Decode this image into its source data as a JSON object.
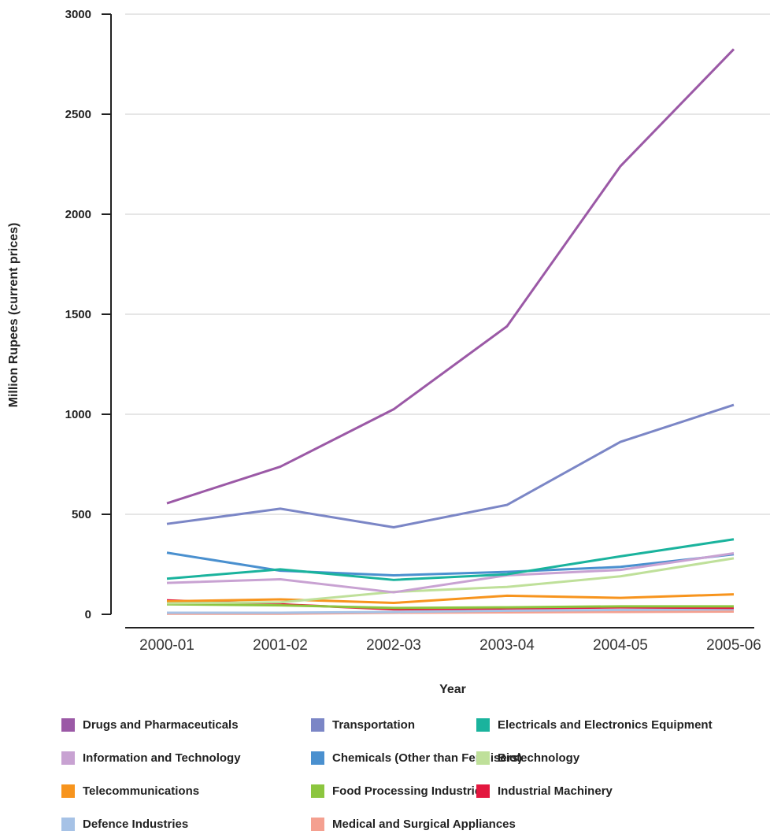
{
  "chart_data": {
    "type": "line",
    "title": "",
    "xlabel": "Year",
    "ylabel": "Million Rupees (current prices)",
    "ylim": [
      0,
      3000
    ],
    "yticks": [
      0,
      500,
      1000,
      1500,
      2000,
      2500,
      3000
    ],
    "grid": "horizontal",
    "legend_position": "bottom",
    "categories": [
      "2000-01",
      "2001-02",
      "2002-03",
      "2003-04",
      "2004-05",
      "2005-06"
    ],
    "series": [
      {
        "name": "Drugs and Pharmaceuticals",
        "color": "#9b59a6",
        "values": [
          555,
          738,
          1025,
          1440,
          2240,
          2825
        ]
      },
      {
        "name": "Transportation",
        "color": "#7b86c6",
        "values": [
          452,
          528,
          435,
          547,
          862,
          1047
        ]
      },
      {
        "name": "Electricals and Electronics Equipment",
        "color": "#1ab39d",
        "values": [
          178,
          225,
          172,
          200,
          290,
          375
        ]
      },
      {
        "name": "Information and Technology",
        "color": "#c8a2d2",
        "values": [
          157,
          175,
          110,
          195,
          222,
          305
        ]
      },
      {
        "name": "Chemicals (Other than Fertilisers)",
        "color": "#4a90cf",
        "values": [
          308,
          218,
          195,
          212,
          237,
          300
        ]
      },
      {
        "name": "Biotechnology",
        "color": "#bfe09a",
        "values": [
          55,
          60,
          112,
          137,
          190,
          280
        ]
      },
      {
        "name": "Telecommunications",
        "color": "#f7941d",
        "values": [
          65,
          75,
          57,
          93,
          82,
          100
        ]
      },
      {
        "name": "Food Processing Industries",
        "color": "#8cc63f",
        "values": [
          50,
          45,
          32,
          35,
          40,
          40
        ]
      },
      {
        "name": "Industrial Machinery",
        "color": "#e3173e",
        "values": [
          70,
          50,
          25,
          30,
          35,
          32
        ]
      },
      {
        "name": "Defence Industries",
        "color": "#a6c2e6",
        "values": [
          8,
          8,
          12,
          18,
          22,
          25
        ]
      },
      {
        "name": "Medical and Surgical Appliances",
        "color": "#f4a090",
        "values": [
          3,
          3,
          8,
          10,
          12,
          14
        ]
      }
    ]
  }
}
